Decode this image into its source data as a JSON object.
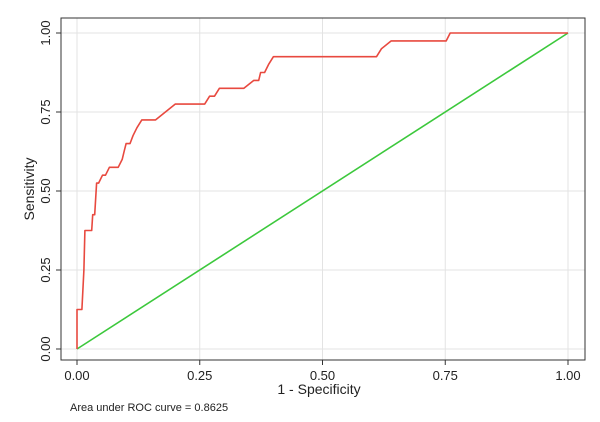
{
  "chart_data": {
    "type": "line",
    "title": "",
    "xlabel": "1 - Specificity",
    "ylabel": "Sensitivity",
    "xlim": [
      0,
      1
    ],
    "ylim": [
      0,
      1
    ],
    "xticks": [
      "0.00",
      "0.25",
      "0.50",
      "0.75",
      "1.00"
    ],
    "yticks": [
      "0.00",
      "0.25",
      "0.50",
      "0.75",
      "1.00"
    ],
    "grid": true,
    "legend": "none",
    "series": [
      {
        "color": "#e8493f",
        "x": [
          0.0,
          0.0,
          0.006,
          0.01,
          0.014,
          0.016,
          0.022,
          0.03,
          0.032,
          0.036,
          0.04,
          0.044,
          0.052,
          0.058,
          0.066,
          0.07,
          0.084,
          0.092,
          0.096,
          0.1,
          0.108,
          0.114,
          0.122,
          0.132,
          0.15,
          0.16,
          0.18,
          0.2,
          0.22,
          0.26,
          0.27,
          0.28,
          0.29,
          0.3,
          0.34,
          0.36,
          0.37,
          0.374,
          0.382,
          0.39,
          0.4,
          0.42,
          0.5,
          0.6,
          0.61,
          0.62,
          0.64,
          0.66,
          0.7,
          0.752,
          0.76,
          0.8,
          0.9,
          1.0
        ],
        "y": [
          0.0,
          0.125,
          0.125,
          0.125,
          0.25,
          0.375,
          0.375,
          0.375,
          0.425,
          0.425,
          0.525,
          0.525,
          0.55,
          0.55,
          0.575,
          0.575,
          0.575,
          0.6,
          0.625,
          0.65,
          0.65,
          0.675,
          0.7,
          0.725,
          0.725,
          0.725,
          0.75,
          0.775,
          0.775,
          0.775,
          0.8,
          0.8,
          0.825,
          0.825,
          0.825,
          0.85,
          0.85,
          0.875,
          0.875,
          0.9,
          0.925,
          0.925,
          0.925,
          0.925,
          0.925,
          0.95,
          0.975,
          0.975,
          0.975,
          0.975,
          1.0,
          1.0,
          1.0,
          1.0
        ]
      },
      {
        "color": "#3cc83c",
        "x": [
          0,
          1
        ],
        "y": [
          0,
          1
        ]
      }
    ],
    "annotation": "Area under ROC curve = 0.8625"
  }
}
